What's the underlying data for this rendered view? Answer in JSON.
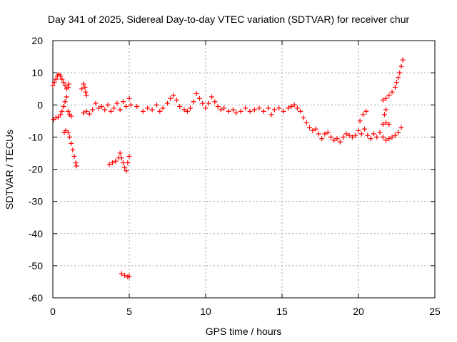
{
  "chart_data": {
    "type": "scatter",
    "title": "Day 341 of 2025, Sidereal Day-to-day VTEC variation (SDTVAR) for receiver chur",
    "xlabel": "GPS time / hours",
    "ylabel": "SDTVAR / TECUs",
    "xlim": [
      0,
      25
    ],
    "ylim": [
      -60,
      20
    ],
    "xticks": [
      0,
      5,
      10,
      15,
      20,
      25
    ],
    "yticks": [
      -60,
      -50,
      -40,
      -30,
      -20,
      -10,
      0,
      10,
      20
    ],
    "grid": true,
    "marker": "+",
    "color": "#ff0000",
    "series": [
      {
        "name": "main",
        "points": [
          [
            0.0,
            6.0
          ],
          [
            0.1,
            7.0
          ],
          [
            0.2,
            8.0
          ],
          [
            0.3,
            9.0
          ],
          [
            0.4,
            9.5
          ],
          [
            0.5,
            9.0
          ],
          [
            0.6,
            8.0
          ],
          [
            0.7,
            7.0
          ],
          [
            0.8,
            6.0
          ],
          [
            0.9,
            5.0
          ],
          [
            1.0,
            5.5
          ],
          [
            1.05,
            6.5
          ],
          [
            0.05,
            -4.5
          ],
          [
            0.2,
            -4.0
          ],
          [
            0.35,
            -3.8
          ],
          [
            0.5,
            -3.0
          ],
          [
            0.6,
            -2.0
          ],
          [
            0.7,
            -0.5
          ],
          [
            0.8,
            1.0
          ],
          [
            0.9,
            2.5
          ],
          [
            0.75,
            -8.5
          ],
          [
            0.85,
            -8.0
          ],
          [
            1.0,
            -8.5
          ],
          [
            1.1,
            -10.0
          ],
          [
            1.2,
            -12.0
          ],
          [
            1.3,
            -14.0
          ],
          [
            1.4,
            -16.0
          ],
          [
            1.5,
            -18.0
          ],
          [
            1.55,
            -19.0
          ],
          [
            1.0,
            -2.0
          ],
          [
            1.1,
            -3.0
          ],
          [
            1.2,
            -3.5
          ],
          [
            1.9,
            5.0
          ],
          [
            2.0,
            6.5
          ],
          [
            2.1,
            5.5
          ],
          [
            2.15,
            4.0
          ],
          [
            2.2,
            3.0
          ],
          [
            2.0,
            -2.5
          ],
          [
            2.2,
            -2.0
          ],
          [
            2.4,
            -2.8
          ],
          [
            2.6,
            -1.5
          ],
          [
            2.8,
            0.5
          ],
          [
            3.0,
            -1.0
          ],
          [
            3.2,
            -0.5
          ],
          [
            3.4,
            -1.5
          ],
          [
            3.6,
            0.0
          ],
          [
            3.8,
            -2.0
          ],
          [
            4.0,
            -1.0
          ],
          [
            4.2,
            0.5
          ],
          [
            4.4,
            -1.5
          ],
          [
            4.6,
            1.0
          ],
          [
            4.8,
            -0.5
          ],
          [
            5.0,
            2.0
          ],
          [
            5.1,
            0.0
          ],
          [
            3.7,
            -18.5
          ],
          [
            3.9,
            -18.0
          ],
          [
            4.1,
            -17.5
          ],
          [
            4.3,
            -16.5
          ],
          [
            4.4,
            -15.0
          ],
          [
            4.5,
            -16.5
          ],
          [
            4.6,
            -18.0
          ],
          [
            4.7,
            -19.5
          ],
          [
            4.8,
            -20.5
          ],
          [
            4.9,
            -18.0
          ],
          [
            5.0,
            -16.0
          ],
          [
            4.5,
            -52.5
          ],
          [
            4.7,
            -53.0
          ],
          [
            4.9,
            -53.5
          ],
          [
            5.0,
            -53.3
          ],
          [
            5.5,
            -0.5
          ],
          [
            5.9,
            -2.0
          ],
          [
            6.2,
            -1.0
          ],
          [
            6.5,
            -1.5
          ],
          [
            6.8,
            0.0
          ],
          [
            7.0,
            -2.0
          ],
          [
            7.2,
            -1.0
          ],
          [
            7.5,
            0.5
          ],
          [
            7.7,
            2.0
          ],
          [
            7.9,
            3.0
          ],
          [
            8.1,
            1.5
          ],
          [
            8.3,
            -0.5
          ],
          [
            8.6,
            -1.5
          ],
          [
            8.8,
            -2.0
          ],
          [
            9.0,
            -1.0
          ],
          [
            9.2,
            1.0
          ],
          [
            9.4,
            3.5
          ],
          [
            9.6,
            2.0
          ],
          [
            9.8,
            0.5
          ],
          [
            10.0,
            -1.0
          ],
          [
            10.2,
            0.5
          ],
          [
            10.4,
            2.5
          ],
          [
            10.6,
            1.0
          ],
          [
            10.8,
            -0.5
          ],
          [
            11.0,
            -1.5
          ],
          [
            11.2,
            -1.0
          ],
          [
            11.5,
            -2.0
          ],
          [
            11.8,
            -1.5
          ],
          [
            12.0,
            -2.5
          ],
          [
            12.3,
            -2.0
          ],
          [
            12.6,
            -1.0
          ],
          [
            12.9,
            -2.0
          ],
          [
            13.2,
            -1.5
          ],
          [
            13.5,
            -1.0
          ],
          [
            13.8,
            -2.0
          ],
          [
            14.1,
            -1.0
          ],
          [
            14.3,
            -3.0
          ],
          [
            14.5,
            -1.5
          ],
          [
            14.8,
            -1.0
          ],
          [
            15.1,
            -2.0
          ],
          [
            15.4,
            -1.0
          ],
          [
            15.6,
            -0.5
          ],
          [
            15.8,
            0.0
          ],
          [
            16.0,
            -1.0
          ],
          [
            16.2,
            -2.0
          ],
          [
            16.4,
            -4.0
          ],
          [
            16.6,
            -5.5
          ],
          [
            16.8,
            -7.0
          ],
          [
            17.0,
            -8.0
          ],
          [
            17.2,
            -7.5
          ],
          [
            17.4,
            -9.0
          ],
          [
            17.6,
            -10.5
          ],
          [
            17.8,
            -9.0
          ],
          [
            18.0,
            -8.5
          ],
          [
            18.2,
            -10.0
          ],
          [
            18.4,
            -11.0
          ],
          [
            18.6,
            -10.5
          ],
          [
            18.8,
            -11.5
          ],
          [
            19.0,
            -10.0
          ],
          [
            19.2,
            -9.0
          ],
          [
            19.4,
            -9.5
          ],
          [
            19.6,
            -10.0
          ],
          [
            19.8,
            -9.5
          ],
          [
            20.0,
            -8.0
          ],
          [
            20.2,
            -9.0
          ],
          [
            20.4,
            -7.5
          ],
          [
            20.6,
            -9.5
          ],
          [
            20.8,
            -10.5
          ],
          [
            21.0,
            -9.0
          ],
          [
            21.2,
            -10.0
          ],
          [
            21.4,
            -8.5
          ],
          [
            21.6,
            -10.0
          ],
          [
            21.8,
            -11.0
          ],
          [
            22.0,
            -10.5
          ],
          [
            22.2,
            -10.0
          ],
          [
            22.4,
            -9.5
          ],
          [
            22.6,
            -8.5
          ],
          [
            22.8,
            -7.0
          ],
          [
            20.1,
            -5.0
          ],
          [
            20.3,
            -3.0
          ],
          [
            20.5,
            -2.0
          ],
          [
            21.6,
            -6.0
          ],
          [
            21.8,
            -5.5
          ],
          [
            22.0,
            -6.0
          ],
          [
            21.7,
            -3.0
          ],
          [
            21.8,
            -1.5
          ],
          [
            21.6,
            1.5
          ],
          [
            21.8,
            2.0
          ],
          [
            22.0,
            3.0
          ],
          [
            22.2,
            4.0
          ],
          [
            22.4,
            5.5
          ],
          [
            22.5,
            7.0
          ],
          [
            22.6,
            8.5
          ],
          [
            22.7,
            10.0
          ],
          [
            22.8,
            12.0
          ],
          [
            22.9,
            14.0
          ]
        ]
      }
    ]
  }
}
